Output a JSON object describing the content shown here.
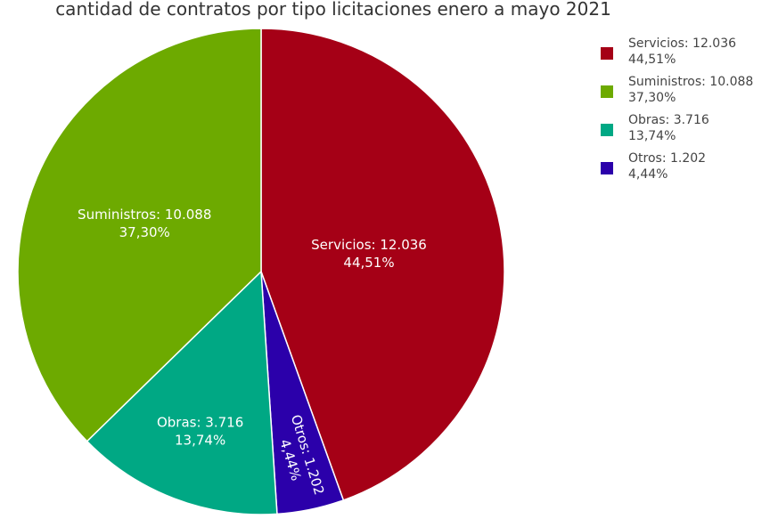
{
  "chart_data": {
    "type": "pie",
    "title": "cantidad de contratos por tipo licitaciones enero a mayo 2021",
    "slices": [
      {
        "name": "Servicios",
        "value": 12036,
        "value_text": "12.036",
        "percent": 44.51,
        "label_line1": "Servicios: 12.036",
        "label_line2": "44,51%",
        "color": "#A50016"
      },
      {
        "name": "Otros",
        "value": 1202,
        "value_text": "1.202",
        "percent": 4.44,
        "label_line1": "Otros:  1.202",
        "label_line2": "4,44%",
        "color": "#2B00AA"
      },
      {
        "name": "Obras",
        "value": 3716,
        "value_text": "3.716",
        "percent": 13.74,
        "label_line1": "Obras:  3.716",
        "label_line2": "13,74%",
        "color": "#00A884"
      },
      {
        "name": "Suministros",
        "value": 10088,
        "value_text": "10.088",
        "percent": 37.3,
        "label_line1": "Suministros: 10.088",
        "label_line2": "37,30%",
        "color": "#6DAA00"
      }
    ],
    "legend": {
      "placement": "top-right",
      "items": [
        {
          "line1": "Servicios: 12.036",
          "line2": "44,51%",
          "color": "#A50016"
        },
        {
          "line1": "Suministros: 10.088",
          "line2": "37,30%",
          "color": "#6DAA00"
        },
        {
          "line1": "Obras:  3.716",
          "line2": "13,74%",
          "color": "#00A884"
        },
        {
          "line1": "Otros:  1.202",
          "line2": " 4,44%",
          "color": "#2B00AA"
        }
      ]
    }
  }
}
